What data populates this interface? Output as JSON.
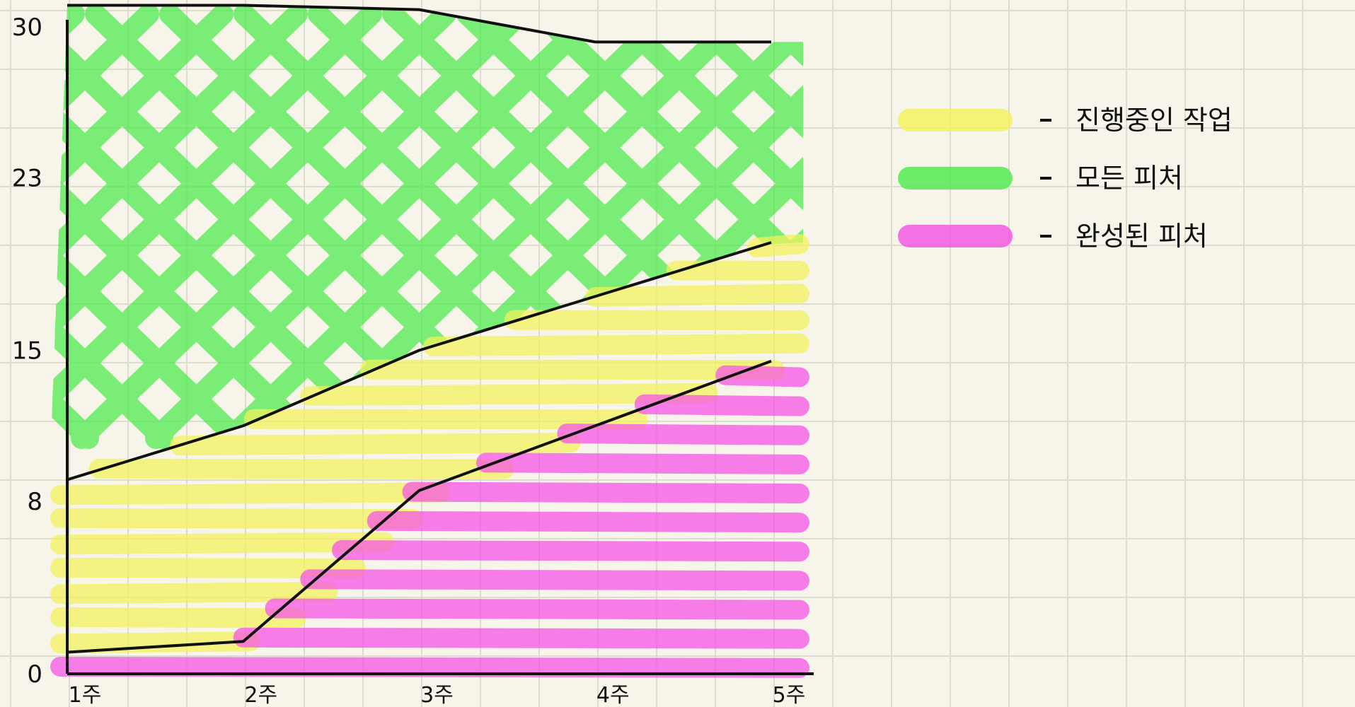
{
  "chart_data": {
    "type": "area",
    "style": "hand-drawn sketch on grid paper (cumulative flow diagram)",
    "x": [
      "1주",
      "2주",
      "3주",
      "4주",
      "5주"
    ],
    "y_ticks": [
      "0",
      "8",
      "15",
      "23",
      "30"
    ],
    "ylim": [
      0,
      30
    ],
    "grid": true,
    "legend_position": "top-right",
    "series": [
      {
        "name": "완성된 피처",
        "role": "lower band (0 → boundary)",
        "color": "#f650e6",
        "boundary": [
          1,
          1.5,
          8.5,
          11.5,
          14.5
        ]
      },
      {
        "name": "진행중인 작업",
        "role": "middle band",
        "color": "#f4f35a",
        "boundary": [
          9,
          11.5,
          15,
          17.5,
          20
        ]
      },
      {
        "name": "모든 피처",
        "role": "upper band (up to total)",
        "color": "#4bea4b",
        "boundary": [
          31,
          31,
          30.8,
          29.3,
          29.3
        ]
      }
    ],
    "legend": [
      {
        "label": "진행중인 작업",
        "color": "#f4f35a"
      },
      {
        "label": "모든 피처",
        "color": "#4bea4b"
      },
      {
        "label": "완성된 피처",
        "color": "#f650e6"
      }
    ]
  }
}
